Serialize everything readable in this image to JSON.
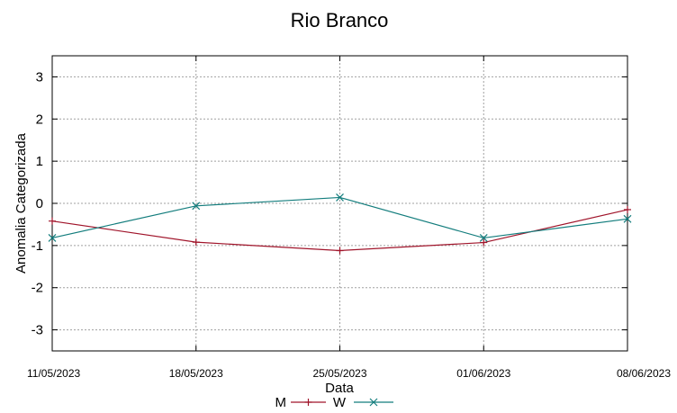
{
  "chart_data": {
    "type": "line",
    "title": "Rio Branco",
    "xlabel": "Data",
    "ylabel": "Anomalia Categorizada",
    "categories": [
      "11/05/2023",
      "18/05/2023",
      "25/05/2023",
      "01/06/2023",
      "08/06/2023"
    ],
    "ylim": [
      -3.5,
      3.5
    ],
    "yticks": [
      -3,
      -2,
      -1,
      0,
      1,
      2,
      3
    ],
    "grid": true,
    "legend": "bottom-center",
    "series": [
      {
        "name": "M",
        "color": "#a0142a",
        "marker": "plus",
        "values": [
          -0.42,
          -0.92,
          -1.12,
          -0.93,
          -0.15
        ]
      },
      {
        "name": "W",
        "color": "#137d7d",
        "marker": "cross",
        "values": [
          -0.82,
          -0.06,
          0.14,
          -0.82,
          -0.37
        ]
      }
    ]
  }
}
